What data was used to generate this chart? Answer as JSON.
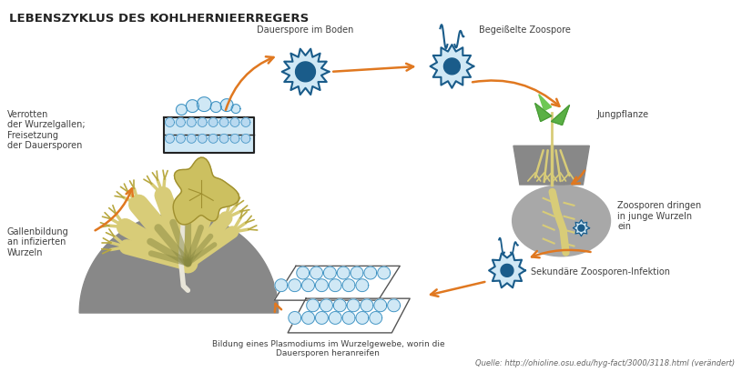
{
  "title": "LEBENSZYKLUS DES KOHLHERNIEERREGERS",
  "source": "Quelle: http://ohioline.osu.edu/hyg-fact/3000/3118.html (verändert)",
  "labels": {
    "dauerspore": "Dauerspore im Boden",
    "zoospore": "Begeißelte Zoospore",
    "jungpflanze": "Jungpflanze",
    "zoosporen_dringen": "Zoosporen dringen\nin junge Wurzeln\nein",
    "sekundaere": "Sekundäre Zoosporen-Infektion",
    "plasmodium": "Bildung eines Plasmodiums im Wurzelgewebe, worin die\nDauersporen heranreifen",
    "gallenbildung": "Gallenbildung\nan infizierten\nWurzeln",
    "verrotten": "Verrotten\nder Wurzelgallen;\nFreisetzung\nder Dauersporen"
  },
  "colors": {
    "blue_dark": "#1a5c8a",
    "blue_mid": "#2980b9",
    "blue_light": "#b8d9f0",
    "blue_cell": "#3a8fc0",
    "blue_fill": "#d0e8f5",
    "orange_arrow": "#e07820",
    "gray_bg": "#7a7a7a",
    "gray_light": "#a8a8a8",
    "gray_soil": "#888888",
    "green_leaf": "#5ab045",
    "green_stem": "#4a9a38",
    "yellow_root": "#d8cc78",
    "yellow_dark": "#b8a840",
    "text_dark": "#404040",
    "black": "#222222",
    "white": "#ffffff",
    "cream": "#f8f5e8"
  },
  "background_color": "#ffffff"
}
